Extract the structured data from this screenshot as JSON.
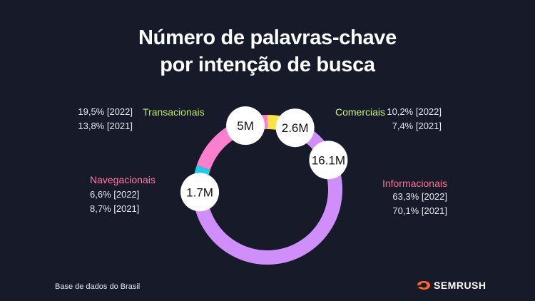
{
  "title_line1": "Número de palavras-chave",
  "title_line2": "por intenção de busca",
  "footer": "Base de dados do Brasil",
  "brand": "SEMRUSH",
  "colors": {
    "background": "#171a29",
    "brand": "#ff642d"
  },
  "chart_data": {
    "type": "pie",
    "style": "donut",
    "slices": [
      {
        "label": "Comerciais",
        "value": "2.6M",
        "amount": 2.6,
        "color": "#f7e442",
        "label_color": "#c7f27d",
        "stats": [
          "10,2% [2022]",
          "7,4% [2021]"
        ]
      },
      {
        "label": "Informacionais",
        "value": "16.1M",
        "amount": 16.1,
        "color": "#cf8ef9",
        "label_color": "#ff6f8b",
        "stats": [
          "63,3% [2022]",
          "70,1% [2021]"
        ]
      },
      {
        "label": "Navegacionais",
        "value": "1.7M",
        "amount": 1.7,
        "color": "#1ecde8",
        "label_color": "#ff7aa6",
        "stats": [
          "6,6% [2022]",
          "8,7% [2021]"
        ]
      },
      {
        "label": "Transacionais",
        "value": "5M",
        "amount": 5.0,
        "color": "#ff7fcf",
        "label_color": "#b6e86a",
        "stats": [
          "19,5% [2022]",
          "13,8% [2021]"
        ]
      }
    ]
  }
}
